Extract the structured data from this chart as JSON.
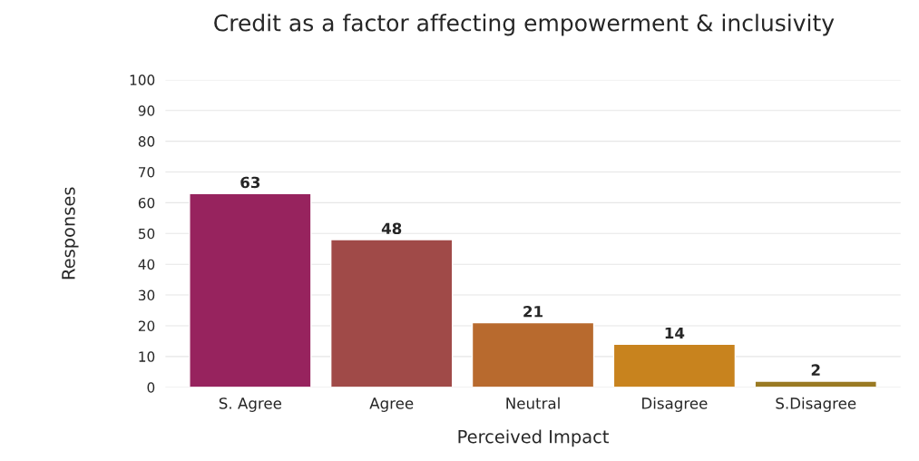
{
  "chart_data": {
    "type": "bar",
    "title": "Credit as a factor affecting empowerment & inclusivity",
    "xlabel": "Perceived Impact",
    "ylabel": "Responses",
    "categories": [
      "S. Agree",
      "Agree",
      "Neutral",
      "Disagree",
      "S.Disagree"
    ],
    "values": [
      63,
      48,
      21,
      14,
      2
    ],
    "colors": [
      "#97235e",
      "#a04a48",
      "#b86a2e",
      "#c8831e",
      "#9a7a23"
    ],
    "ylim": [
      0,
      100
    ],
    "yticks": [
      0,
      10,
      20,
      30,
      40,
      50,
      60,
      70,
      80,
      90,
      100
    ],
    "grid": "y",
    "data_labels": true
  }
}
